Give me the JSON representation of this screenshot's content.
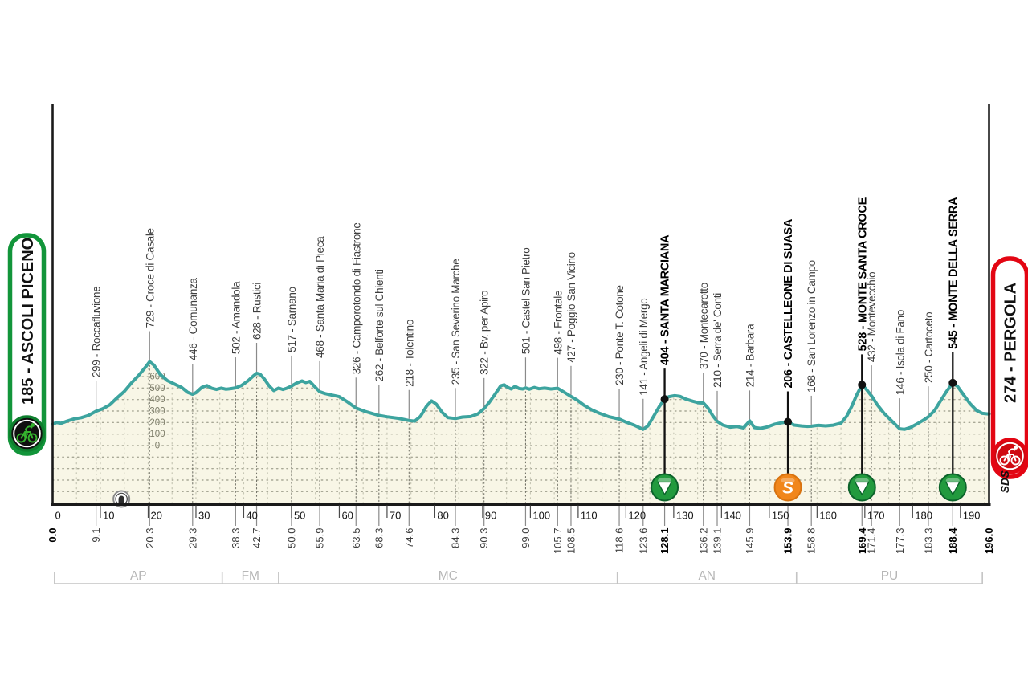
{
  "chart_data": {
    "type": "area",
    "description": "Cycling stage altimetry profile",
    "start": {
      "label": "185 - ASCOLI PICENO",
      "accent": "#12953a"
    },
    "finish": {
      "label": "274 - PERGOLA",
      "accent": "#e30613"
    },
    "branding": "SDS",
    "colors": {
      "profile_line": "#3da49f",
      "area_fill": "#f8f6e6",
      "grid_dots": "#a8a896",
      "marker_line": "#8a8a8a",
      "bold_marker": "#111111",
      "sprint_green": "#229a3e",
      "sprint_orange": "#f1861b",
      "province": "#b6b6b6"
    },
    "x_axis": {
      "unit": "km",
      "total_km": 196.0,
      "ticks": [
        0,
        10,
        20,
        30,
        40,
        50,
        60,
        70,
        80,
        90,
        100,
        110,
        120,
        130,
        140,
        150,
        160,
        170,
        180,
        190
      ]
    },
    "y_axis": {
      "unit": "m",
      "ticks": [
        0,
        100,
        200,
        300,
        400,
        500,
        600
      ]
    },
    "waypoints": [
      {
        "km": 9.1,
        "elev": 299,
        "name": "299 - Roccafluvione",
        "bold": false,
        "icon": null
      },
      {
        "km": 20.3,
        "elev": 729,
        "name": "729 - Croce di Casale",
        "bold": false,
        "icon": null
      },
      {
        "km": 29.3,
        "elev": 446,
        "name": "446 - Comunanza",
        "bold": false,
        "icon": null
      },
      {
        "km": 38.3,
        "elev": 502,
        "name": "502 - Amandola",
        "bold": false,
        "icon": null
      },
      {
        "km": 42.7,
        "elev": 628,
        "name": "628 - Rustici",
        "bold": false,
        "icon": null
      },
      {
        "km": 50.0,
        "elev": 517,
        "name": "517 - Sarnano",
        "bold": false,
        "icon": null
      },
      {
        "km": 55.9,
        "elev": 468,
        "name": "468 - Santa Maria di Pieca",
        "bold": false,
        "icon": null
      },
      {
        "km": 63.5,
        "elev": 326,
        "name": "326 - Camporotondo di Fiastrone",
        "bold": false,
        "icon": null
      },
      {
        "km": 68.3,
        "elev": 262,
        "name": "262 - Belforte sul Chienti",
        "bold": false,
        "icon": null
      },
      {
        "km": 74.6,
        "elev": 218,
        "name": "218 - Tolentino",
        "bold": false,
        "icon": null
      },
      {
        "km": 84.3,
        "elev": 235,
        "name": "235 - San Severino Marche",
        "bold": false,
        "icon": null
      },
      {
        "km": 90.3,
        "elev": 322,
        "name": "322 - Bv. per Apiro",
        "bold": false,
        "icon": null
      },
      {
        "km": 99.0,
        "elev": 501,
        "name": "501 - Castel San Pietro",
        "bold": false,
        "icon": null
      },
      {
        "km": 105.7,
        "elev": 498,
        "name": "498 - Frontale",
        "bold": false,
        "icon": null
      },
      {
        "km": 108.5,
        "elev": 427,
        "name": "427 - Poggio San Vicino",
        "bold": false,
        "icon": null
      },
      {
        "km": 118.6,
        "elev": 230,
        "name": "230 - Ponte T. Cotone",
        "bold": false,
        "icon": null
      },
      {
        "km": 123.6,
        "elev": 141,
        "name": "141 - Angeli di Mergo",
        "bold": false,
        "icon": null
      },
      {
        "km": 128.1,
        "elev": 404,
        "name": "404 - SANTA MARCIANA",
        "bold": true,
        "icon": "bonus-sprint-icon"
      },
      {
        "km": 136.2,
        "elev": 370,
        "name": "370 - Montecarotto",
        "bold": false,
        "icon": null
      },
      {
        "km": 139.1,
        "elev": 210,
        "name": "210 - Serra de' Conti",
        "bold": false,
        "icon": null
      },
      {
        "km": 145.9,
        "elev": 214,
        "name": "214 - Barbara",
        "bold": false,
        "icon": null
      },
      {
        "km": 153.9,
        "elev": 206,
        "name": "206 - CASTELLEONE DI SUASA",
        "bold": true,
        "icon": "intermediate-sprint-icon"
      },
      {
        "km": 158.8,
        "elev": 168,
        "name": "168 - San Lorenzo in Campo",
        "bold": false,
        "icon": null
      },
      {
        "km": 169.4,
        "elev": 528,
        "name": "528 - MONTE SANTA CROCE",
        "bold": true,
        "icon": "bonus-sprint-icon"
      },
      {
        "km": 171.4,
        "elev": 432,
        "name": "432 - Montevecchio",
        "bold": false,
        "icon": null
      },
      {
        "km": 177.3,
        "elev": 146,
        "name": "146 - Isola di Fano",
        "bold": false,
        "icon": null
      },
      {
        "km": 183.3,
        "elev": 250,
        "name": "250 - Cartoceto",
        "bold": false,
        "icon": null
      },
      {
        "km": 188.4,
        "elev": 545,
        "name": "545 - MONTE DELLA SERRA",
        "bold": true,
        "icon": "bonus-sprint-icon"
      }
    ],
    "km_labels": [
      {
        "km": 0.0,
        "text": "0.0",
        "bold": true
      },
      {
        "km": 9.1,
        "text": "9.1",
        "bold": false
      },
      {
        "km": 20.3,
        "text": "20.3",
        "bold": false
      },
      {
        "km": 29.3,
        "text": "29.3",
        "bold": false
      },
      {
        "km": 38.3,
        "text": "38.3",
        "bold": false
      },
      {
        "km": 42.7,
        "text": "42.7",
        "bold": false
      },
      {
        "km": 50.0,
        "text": "50.0",
        "bold": false
      },
      {
        "km": 55.9,
        "text": "55.9",
        "bold": false
      },
      {
        "km": 63.5,
        "text": "63.5",
        "bold": false
      },
      {
        "km": 68.3,
        "text": "68.3",
        "bold": false
      },
      {
        "km": 74.6,
        "text": "74.6",
        "bold": false
      },
      {
        "km": 84.3,
        "text": "84.3",
        "bold": false
      },
      {
        "km": 90.3,
        "text": "90.3",
        "bold": false
      },
      {
        "km": 99.0,
        "text": "99.0",
        "bold": false
      },
      {
        "km": 105.7,
        "text": "105.7",
        "bold": false
      },
      {
        "km": 108.5,
        "text": "108.5",
        "bold": false
      },
      {
        "km": 118.6,
        "text": "118.6",
        "bold": false
      },
      {
        "km": 123.6,
        "text": "123.6",
        "bold": false
      },
      {
        "km": 128.1,
        "text": "128.1",
        "bold": true
      },
      {
        "km": 136.2,
        "text": "136.2",
        "bold": false
      },
      {
        "km": 139.1,
        "text": "139.1",
        "bold": false
      },
      {
        "km": 145.9,
        "text": "145.9",
        "bold": false
      },
      {
        "km": 153.9,
        "text": "153.9",
        "bold": true
      },
      {
        "km": 158.8,
        "text": "158.8",
        "bold": false
      },
      {
        "km": 169.4,
        "text": "169.4",
        "bold": true
      },
      {
        "km": 171.4,
        "text": "171.4",
        "bold": false
      },
      {
        "km": 177.3,
        "text": "177.3",
        "bold": false
      },
      {
        "km": 183.3,
        "text": "183.3",
        "bold": false
      },
      {
        "km": 188.4,
        "text": "188.4",
        "bold": true
      },
      {
        "km": 196.0,
        "text": "196.0",
        "bold": true
      }
    ],
    "provinces": [
      {
        "code": "AP",
        "from_km": 0.4,
        "to_km": 35.5
      },
      {
        "code": "FM",
        "from_km": 35.5,
        "to_km": 47.3
      },
      {
        "code": "MC",
        "from_km": 47.3,
        "to_km": 118.2
      },
      {
        "code": "AN",
        "from_km": 118.2,
        "to_km": 155.7
      },
      {
        "code": "PU",
        "from_km": 155.7,
        "to_km": 194.6
      }
    ],
    "tunnel": {
      "km": 14.4
    },
    "profile": [
      [
        0,
        185
      ],
      [
        0.8,
        200
      ],
      [
        1.8,
        193
      ],
      [
        3,
        212
      ],
      [
        4.5,
        232
      ],
      [
        6,
        242
      ],
      [
        7.5,
        262
      ],
      [
        9.1,
        299
      ],
      [
        10.5,
        320
      ],
      [
        12,
        355
      ],
      [
        13.5,
        415
      ],
      [
        15,
        470
      ],
      [
        16.5,
        545
      ],
      [
        18,
        610
      ],
      [
        19.3,
        675
      ],
      [
        20.3,
        729
      ],
      [
        21.2,
        700
      ],
      [
        22.5,
        620
      ],
      [
        24,
        565
      ],
      [
        25.5,
        535
      ],
      [
        27,
        505
      ],
      [
        28.3,
        462
      ],
      [
        29.3,
        446
      ],
      [
        30,
        460
      ],
      [
        31.2,
        505
      ],
      [
        32.3,
        522
      ],
      [
        33.3,
        498
      ],
      [
        34.3,
        488
      ],
      [
        35.3,
        500
      ],
      [
        36.3,
        490
      ],
      [
        37.3,
        495
      ],
      [
        38.3,
        502
      ],
      [
        39.5,
        522
      ],
      [
        40.8,
        560
      ],
      [
        42,
        605
      ],
      [
        42.7,
        628
      ],
      [
        43.4,
        622
      ],
      [
        44.3,
        580
      ],
      [
        45.3,
        520
      ],
      [
        46.3,
        478
      ],
      [
        47.3,
        500
      ],
      [
        48.2,
        488
      ],
      [
        49,
        498
      ],
      [
        50,
        517
      ],
      [
        51,
        542
      ],
      [
        52.2,
        562
      ],
      [
        53,
        548
      ],
      [
        53.8,
        558
      ],
      [
        54.8,
        515
      ],
      [
        55.9,
        468
      ],
      [
        57,
        452
      ],
      [
        58.5,
        438
      ],
      [
        60,
        425
      ],
      [
        61.5,
        385
      ],
      [
        63.5,
        326
      ],
      [
        65.3,
        298
      ],
      [
        66.8,
        280
      ],
      [
        68.3,
        262
      ],
      [
        70,
        250
      ],
      [
        72.3,
        237
      ],
      [
        74.6,
        218
      ],
      [
        75.8,
        212
      ],
      [
        77,
        255
      ],
      [
        78.3,
        345
      ],
      [
        79.3,
        388
      ],
      [
        80.3,
        360
      ],
      [
        81.5,
        290
      ],
      [
        82.7,
        243
      ],
      [
        84.3,
        235
      ],
      [
        85.8,
        248
      ],
      [
        87.5,
        252
      ],
      [
        89,
        275
      ],
      [
        90.3,
        322
      ],
      [
        91.3,
        370
      ],
      [
        92.5,
        440
      ],
      [
        93.8,
        520
      ],
      [
        94.5,
        528
      ],
      [
        95.3,
        505
      ],
      [
        96,
        492
      ],
      [
        96.8,
        515
      ],
      [
        97.6,
        496
      ],
      [
        98.4,
        492
      ],
      [
        99,
        501
      ],
      [
        99.8,
        490
      ],
      [
        100.8,
        505
      ],
      [
        101.8,
        494
      ],
      [
        103,
        500
      ],
      [
        104.3,
        492
      ],
      [
        105.7,
        498
      ],
      [
        106.8,
        470
      ],
      [
        108.5,
        427
      ],
      [
        109.8,
        395
      ],
      [
        111.2,
        352
      ],
      [
        112.8,
        312
      ],
      [
        114.5,
        280
      ],
      [
        116.5,
        250
      ],
      [
        118.6,
        230
      ],
      [
        120,
        204
      ],
      [
        121.8,
        176
      ],
      [
        123.6,
        141
      ],
      [
        124.6,
        170
      ],
      [
        125.8,
        255
      ],
      [
        127,
        340
      ],
      [
        128.1,
        404
      ],
      [
        129,
        425
      ],
      [
        130.2,
        434
      ],
      [
        131.3,
        428
      ],
      [
        132.5,
        405
      ],
      [
        134,
        385
      ],
      [
        135.2,
        372
      ],
      [
        136.2,
        370
      ],
      [
        137.2,
        325
      ],
      [
        138.2,
        258
      ],
      [
        139.1,
        210
      ],
      [
        140.3,
        178
      ],
      [
        141.8,
        160
      ],
      [
        143.2,
        166
      ],
      [
        144.6,
        153
      ],
      [
        145.9,
        214
      ],
      [
        146.9,
        156
      ],
      [
        148.2,
        149
      ],
      [
        149.6,
        162
      ],
      [
        151.2,
        186
      ],
      [
        152.6,
        198
      ],
      [
        153.9,
        206
      ],
      [
        155.2,
        178
      ],
      [
        156.8,
        170
      ],
      [
        158,
        167
      ],
      [
        158.8,
        168
      ],
      [
        160.2,
        176
      ],
      [
        161.8,
        171
      ],
      [
        163.4,
        177
      ],
      [
        165,
        195
      ],
      [
        166.2,
        255
      ],
      [
        167.3,
        345
      ],
      [
        168.3,
        440
      ],
      [
        169.4,
        528
      ],
      [
        170.2,
        495
      ],
      [
        171.4,
        432
      ],
      [
        172.6,
        355
      ],
      [
        174,
        282
      ],
      [
        175.6,
        215
      ],
      [
        177.3,
        146
      ],
      [
        178.3,
        141
      ],
      [
        179.6,
        158
      ],
      [
        181.2,
        195
      ],
      [
        182.4,
        225
      ],
      [
        183.3,
        250
      ],
      [
        184.6,
        305
      ],
      [
        185.8,
        385
      ],
      [
        187,
        465
      ],
      [
        188.4,
        545
      ],
      [
        189.4,
        515
      ],
      [
        190.6,
        445
      ],
      [
        192,
        365
      ],
      [
        193.4,
        305
      ],
      [
        194.6,
        280
      ],
      [
        196,
        274
      ]
    ]
  }
}
